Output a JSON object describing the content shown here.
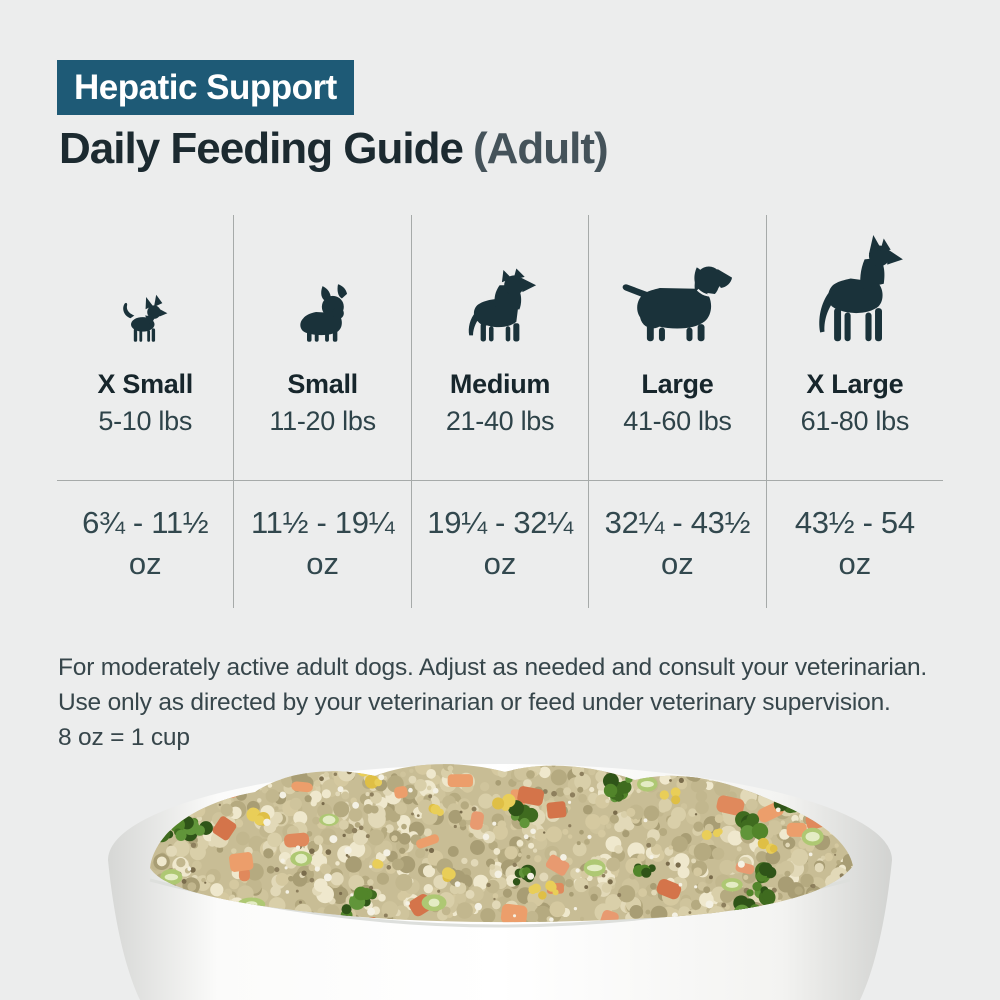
{
  "colors": {
    "background": "#eceded",
    "badge_bg": "#1e5a76",
    "badge_text": "#ffffff",
    "title_text": "#1c2a30",
    "icon_fill": "#1a323a",
    "divider": "#a6aaa9"
  },
  "header": {
    "badge": "Hepatic Support",
    "title": "Daily Feeding Guide",
    "title_suffix": "(Adult)"
  },
  "table": {
    "columns": [
      {
        "icon": "chihuahua-icon",
        "size": "X Small",
        "weight": "5-10 lbs",
        "amount": "6¾ - 11½",
        "unit": "oz"
      },
      {
        "icon": "french-bulldog-icon",
        "size": "Small",
        "weight": "11-20 lbs",
        "amount": "11½ - 19¼",
        "unit": "oz"
      },
      {
        "icon": "pit-bull-icon",
        "size": "Medium",
        "weight": "21-40 lbs",
        "amount": "19¼ - 32¼",
        "unit": "oz"
      },
      {
        "icon": "labrador-icon",
        "size": "Large",
        "weight": "41-60 lbs",
        "amount": "32¼ - 43½",
        "unit": "oz"
      },
      {
        "icon": "great-dane-icon",
        "size": "X Large",
        "weight": "61-80 lbs",
        "amount": "43½ - 54",
        "unit": "oz"
      }
    ]
  },
  "footnote": {
    "line1": "For moderately active adult dogs. Adjust as needed and consult your veterinarian.",
    "line2": "Use only as directed by your veterinarian or feed under veterinary supervision.",
    "line3": "8 oz = 1 cup"
  }
}
